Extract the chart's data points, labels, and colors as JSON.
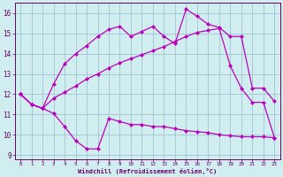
{
  "xlabel": "Windchill (Refroidissement éolien,°C)",
  "bg_color": "#d0eef0",
  "line_color": "#bb00bb",
  "grid_color": "#99bbcc",
  "axis_color": "#660066",
  "tick_color": "#660066",
  "label_color": "#660066",
  "ylim": [
    8.8,
    16.5
  ],
  "xlim": [
    -0.5,
    23.5
  ],
  "yticks": [
    9,
    10,
    11,
    12,
    13,
    14,
    15,
    16
  ],
  "xticks": [
    0,
    1,
    2,
    3,
    4,
    5,
    6,
    7,
    8,
    9,
    10,
    11,
    12,
    13,
    14,
    15,
    16,
    17,
    18,
    19,
    20,
    21,
    22,
    23
  ],
  "curve1_x": [
    0,
    1,
    2,
    3,
    4,
    5,
    6,
    7,
    8,
    9,
    10,
    11,
    12,
    13,
    14,
    15,
    16,
    17,
    18,
    19,
    20,
    21,
    22,
    23
  ],
  "curve1_y": [
    12.0,
    11.5,
    11.3,
    11.05,
    10.4,
    9.7,
    9.3,
    9.3,
    10.8,
    10.65,
    10.5,
    10.5,
    10.4,
    10.4,
    10.3,
    10.2,
    10.15,
    10.1,
    10.0,
    9.95,
    9.9,
    9.9,
    9.9,
    9.85
  ],
  "curve2_x": [
    0,
    1,
    2,
    3,
    4,
    5,
    6,
    7,
    8,
    9,
    10,
    11,
    12,
    13,
    14,
    15,
    16,
    17,
    18,
    19,
    20,
    21,
    22,
    23
  ],
  "curve2_y": [
    12.0,
    11.5,
    11.3,
    11.8,
    12.1,
    12.4,
    12.75,
    13.0,
    13.3,
    13.55,
    13.75,
    13.95,
    14.15,
    14.35,
    14.6,
    14.85,
    15.05,
    15.15,
    15.25,
    13.4,
    12.3,
    11.6,
    11.6,
    9.85
  ],
  "curve3_x": [
    0,
    1,
    2,
    3,
    4,
    5,
    6,
    7,
    8,
    9,
    10,
    11,
    12,
    13,
    14,
    15,
    16,
    17,
    18,
    19,
    20,
    21,
    22,
    23
  ],
  "curve3_y": [
    12.0,
    11.5,
    11.3,
    12.5,
    13.5,
    14.0,
    14.4,
    14.85,
    15.2,
    15.35,
    14.85,
    15.1,
    15.35,
    14.85,
    14.5,
    16.2,
    15.85,
    15.45,
    15.3,
    14.85,
    14.85,
    12.3,
    12.3,
    11.65
  ]
}
